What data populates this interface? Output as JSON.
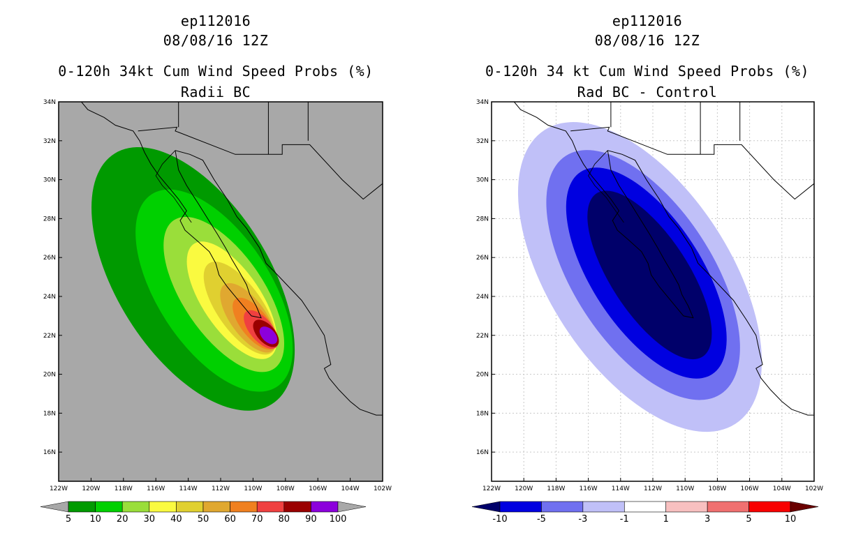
{
  "chart_data": [
    {
      "type": "heatmap",
      "storm_id": "ep112016",
      "datetime": "08/08/16 12Z",
      "title": "0-120h 34kt Cum Wind Speed Probs (%)",
      "subtitle": "Radii BC",
      "background_color": "#a8a8a8",
      "xlim": [
        -122,
        -102
      ],
      "ylim": [
        14.5,
        34
      ],
      "x_tick_values": [
        -122,
        -120,
        -118,
        -116,
        -114,
        -112,
        -110,
        -108,
        -106,
        -104,
        -102
      ],
      "y_tick_values": [
        16,
        18,
        20,
        22,
        24,
        26,
        28,
        30,
        32,
        34
      ],
      "x_tick_labels": [
        "122W",
        "120W",
        "118W",
        "116W",
        "114W",
        "112W",
        "110W",
        "108W",
        "106W",
        "104W",
        "102W"
      ],
      "y_tick_labels": [
        "16N",
        "18N",
        "20N",
        "22N",
        "24N",
        "26N",
        "28N",
        "30N",
        "32N",
        "34N"
      ],
      "grid": false,
      "colorbar": {
        "labels": [
          "5",
          "10",
          "20",
          "30",
          "40",
          "50",
          "60",
          "70",
          "80",
          "90",
          "100"
        ],
        "colors": [
          "#009a00",
          "#00d000",
          "#9ade3a",
          "#fafa40",
          "#e0d030",
          "#e0a830",
          "#f08020",
          "#f04040",
          "#9a0000",
          "#8c00dc"
        ],
        "end_colors": [
          "#a8a8a8",
          "#a8a8a8"
        ]
      },
      "contours": [
        {
          "level": 5,
          "color": "#009a00",
          "cx": -113.7,
          "cy": 24.9,
          "rx": 4.7,
          "ry": 7.6,
          "rot": 32
        },
        {
          "level": 10,
          "color": "#00d000",
          "cx": -112.4,
          "cy": 24.3,
          "rx": 3.5,
          "ry": 5.9,
          "rot": 33
        },
        {
          "level": 20,
          "color": "#9ade3a",
          "cx": -111.8,
          "cy": 24.1,
          "rx": 2.5,
          "ry": 4.6,
          "rot": 34
        },
        {
          "level": 30,
          "color": "#fafa40",
          "cx": -111.3,
          "cy": 23.8,
          "rx": 1.8,
          "ry": 3.5,
          "rot": 34
        },
        {
          "level": 40,
          "color": "#e0d030",
          "cx": -110.8,
          "cy": 23.4,
          "rx": 1.4,
          "ry": 2.8,
          "rot": 35
        },
        {
          "level": 50,
          "color": "#e0a830",
          "cx": -110.3,
          "cy": 22.9,
          "rx": 1.1,
          "ry": 2.1,
          "rot": 36
        },
        {
          "level": 60,
          "color": "#f08020",
          "cx": -109.9,
          "cy": 22.6,
          "rx": 0.85,
          "ry": 1.6,
          "rot": 38
        },
        {
          "level": 70,
          "color": "#f04040",
          "cx": -109.5,
          "cy": 22.3,
          "rx": 0.7,
          "ry": 1.2,
          "rot": 40
        },
        {
          "level": 80,
          "color": "#9a0000",
          "cx": -109.2,
          "cy": 22.1,
          "rx": 0.55,
          "ry": 0.85,
          "rot": 42
        },
        {
          "level": 90,
          "color": "#8c00dc",
          "cx": -109.05,
          "cy": 22.0,
          "rx": 0.4,
          "ry": 0.55,
          "rot": 45
        }
      ]
    },
    {
      "type": "heatmap",
      "storm_id": "ep112016",
      "datetime": "08/08/16 12Z",
      "title": "0-120h 34 kt Cum Wind Speed Probs (%)",
      "subtitle": "Rad BC - Control",
      "background_color": "#ffffff",
      "xlim": [
        -122,
        -102
      ],
      "ylim": [
        14.5,
        34
      ],
      "x_tick_values": [
        -122,
        -120,
        -118,
        -116,
        -114,
        -112,
        -110,
        -108,
        -106,
        -104,
        -102
      ],
      "y_tick_values": [
        16,
        18,
        20,
        22,
        24,
        26,
        28,
        30,
        32,
        34
      ],
      "x_tick_labels": [
        "122W",
        "120W",
        "118W",
        "116W",
        "114W",
        "112W",
        "110W",
        "108W",
        "106W",
        "104W",
        "102W"
      ],
      "y_tick_labels": [
        "16N",
        "18N",
        "20N",
        "22N",
        "24N",
        "26N",
        "28N",
        "30N",
        "32N",
        "34N"
      ],
      "grid": true,
      "colorbar": {
        "labels": [
          "-10",
          "-5",
          "-3",
          "-1",
          "1",
          "3",
          "5",
          "10"
        ],
        "colors": [
          "#0000e0",
          "#7070f0",
          "#c0c0f8",
          "#ffffff",
          "#f8c0c0",
          "#f07070",
          "#f80000"
        ],
        "end_colors": [
          "#00006a",
          "#6a0000"
        ]
      },
      "contours": [
        {
          "level": -1,
          "color": "#c0c0f8",
          "cx": -112.8,
          "cy": 25.0,
          "rx": 5.6,
          "ry": 9.0,
          "rot": 33
        },
        {
          "level": -3,
          "color": "#7070f0",
          "cx": -112.6,
          "cy": 25.1,
          "rx": 4.3,
          "ry": 7.3,
          "rot": 33
        },
        {
          "level": -5,
          "color": "#0000e0",
          "cx": -112.4,
          "cy": 25.2,
          "rx": 3.4,
          "ry": 6.2,
          "rot": 33
        },
        {
          "level": -10,
          "color": "#00006a",
          "cx": -112.2,
          "cy": 25.1,
          "rx": 2.4,
          "ry": 5.0,
          "rot": 33
        }
      ]
    }
  ]
}
